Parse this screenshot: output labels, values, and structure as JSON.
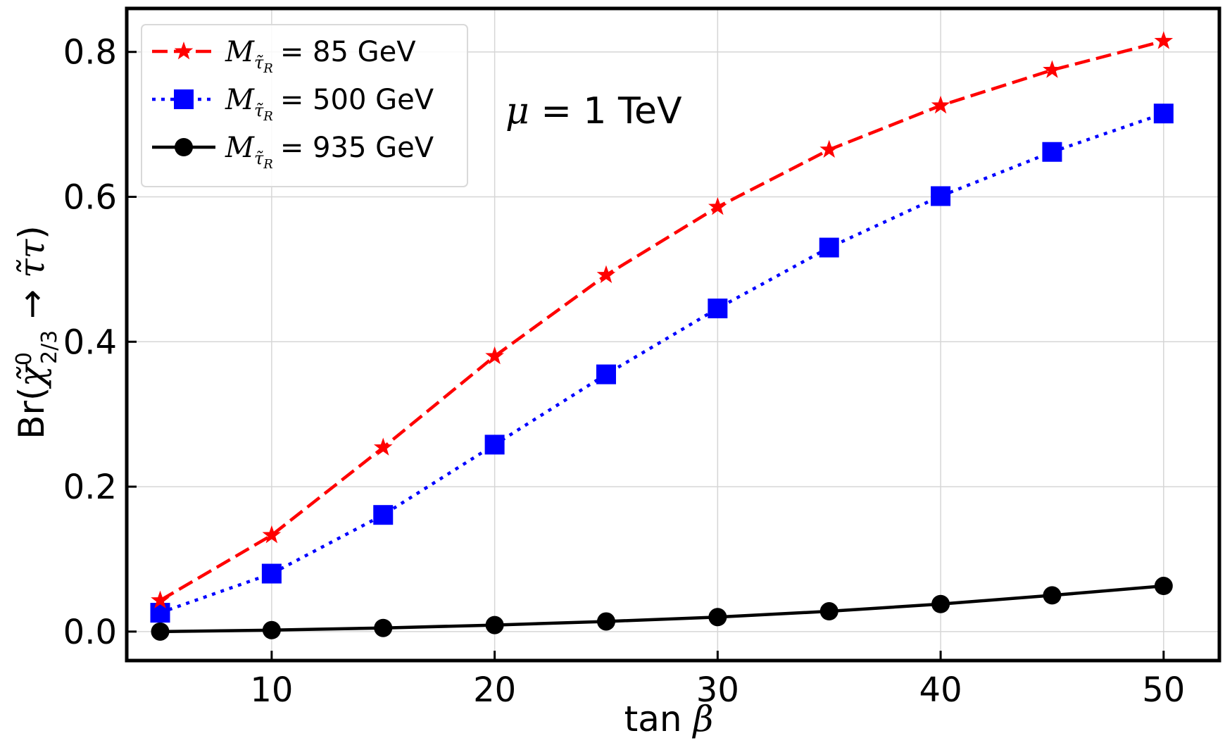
{
  "chart_data": {
    "type": "line",
    "title": "",
    "xlabel": "tan β",
    "ylabel": "Br(χ̃⁰₂/₃ → τ̃τ)",
    "xlim": [
      3.5,
      52.5
    ],
    "ylim": [
      -0.04,
      0.86
    ],
    "xticks": [
      10,
      20,
      30,
      40,
      50
    ],
    "yticks": [
      0.0,
      0.2,
      0.4,
      0.6,
      0.8
    ],
    "xtick_labels": [
      "10",
      "20",
      "30",
      "40",
      "50"
    ],
    "ytick_labels": [
      "0.0",
      "0.2",
      "0.4",
      "0.6",
      "0.8"
    ],
    "grid": true,
    "legend_position": "top-left",
    "x": [
      5,
      10,
      15,
      20,
      25,
      30,
      35,
      40,
      45,
      50
    ],
    "series": [
      {
        "name": "M_τ̃R = 85 GeV",
        "legend_value": "= 85 GeV",
        "color": "#ff0000",
        "line_style": "dashed",
        "marker": "star",
        "values": [
          0.043,
          0.133,
          0.254,
          0.38,
          0.492,
          0.586,
          0.665,
          0.726,
          0.775,
          0.815
        ]
      },
      {
        "name": "M_τ̃R = 500 GeV",
        "legend_value": "= 500 GeV",
        "color": "#0000ff",
        "line_style": "dotted",
        "marker": "square",
        "values": [
          0.026,
          0.08,
          0.161,
          0.258,
          0.355,
          0.446,
          0.53,
          0.601,
          0.662,
          0.715
        ]
      },
      {
        "name": "M_τ̃R = 935 GeV",
        "legend_value": "= 935 GeV",
        "color": "#000000",
        "line_style": "solid",
        "marker": "circle",
        "values": [
          0.0,
          0.002,
          0.005,
          0.009,
          0.014,
          0.02,
          0.028,
          0.038,
          0.05,
          0.063
        ]
      }
    ],
    "annotations": [
      {
        "text": "μ = 1 TeV",
        "position": "upper-center"
      }
    ]
  }
}
